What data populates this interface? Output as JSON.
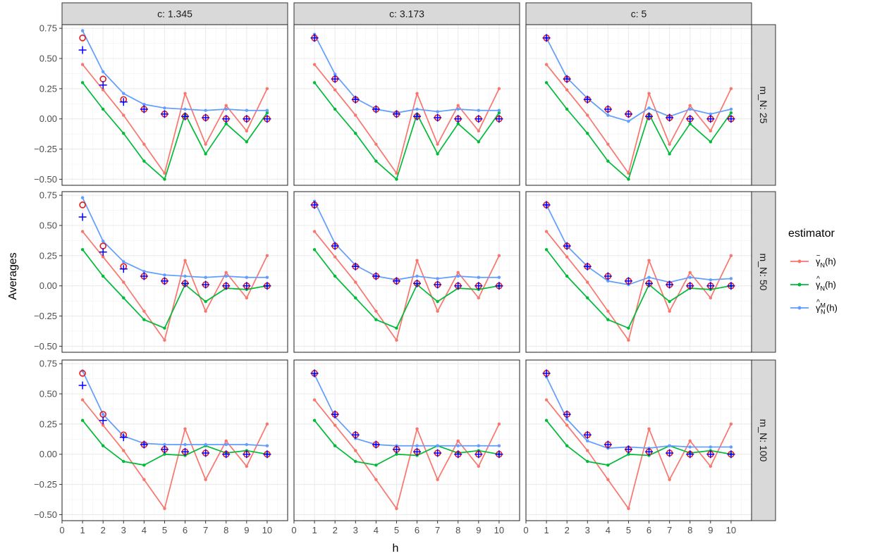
{
  "chart_data": {
    "type": "line",
    "xlabel": "h",
    "ylabel": "Averages",
    "xlim": [
      0,
      11
    ],
    "ylim": [
      -0.55,
      0.78
    ],
    "x_ticks": [
      0,
      1,
      2,
      3,
      4,
      5,
      6,
      7,
      8,
      9,
      10
    ],
    "y_ticks": [
      -0.5,
      -0.25,
      0,
      0.25,
      0.5,
      0.75
    ],
    "y_tick_labels": [
      "−0.50",
      "−0.25",
      "0.00",
      "0.25",
      "0.50",
      "0.75"
    ],
    "col_strips": [
      "c: 1.345",
      "c: 3.173",
      "c: 5"
    ],
    "row_strips": [
      "m_N: 25",
      "m_N: 50",
      "m_N: 100"
    ],
    "legend": {
      "title": "estimator",
      "entries": [
        {
          "base": "γ",
          "accent": "~",
          "sub": "N",
          "sup": "",
          "suffix": "(h)",
          "color": "#F8766D"
        },
        {
          "base": "γ",
          "accent": "^",
          "sub": "N",
          "sup": "",
          "suffix": "(h)",
          "color": "#00BA38"
        },
        {
          "base": "γ",
          "accent": "^",
          "sub": "N",
          "sup": "M",
          "suffix": "(h)",
          "color": "#619CFF"
        }
      ]
    },
    "colors": {
      "red": "#F8766D",
      "green": "#00BA38",
      "blue": "#619CFF",
      "circle": "#E41A1C",
      "plus": "#0000FF"
    },
    "x": [
      1,
      2,
      3,
      4,
      5,
      6,
      7,
      8,
      9,
      10
    ],
    "red_series": [
      0.45,
      0.24,
      0.03,
      -0.21,
      -0.45,
      0.21,
      -0.21,
      0.11,
      -0.1,
      0.25
    ],
    "panels": [
      {
        "row": 0,
        "col": 0,
        "green": [
          0.3,
          0.08,
          -0.12,
          -0.35,
          -0.5,
          0.04,
          -0.29,
          -0.04,
          -0.19,
          0.05
        ],
        "blue": [
          0.73,
          0.39,
          0.21,
          0.12,
          0.09,
          0.08,
          0.07,
          0.08,
          0.07,
          0.07
        ],
        "circles": [
          0.67,
          0.33,
          0.16,
          0.08,
          0.04,
          0.02,
          0.01,
          0.0,
          0.0,
          0.0
        ],
        "pluses": [
          0.57,
          0.28,
          0.14,
          0.08,
          0.04,
          0.02,
          0.01,
          0.0,
          0.0,
          0.0
        ]
      },
      {
        "row": 0,
        "col": 1,
        "green": [
          0.3,
          0.08,
          -0.12,
          -0.35,
          -0.5,
          0.04,
          -0.29,
          -0.04,
          -0.19,
          0.05
        ],
        "blue": [
          0.7,
          0.37,
          0.17,
          0.08,
          0.05,
          0.08,
          0.06,
          0.08,
          0.07,
          0.07
        ],
        "circles": [
          0.67,
          0.33,
          0.16,
          0.08,
          0.04,
          0.02,
          0.01,
          0.0,
          0.0,
          0.0
        ],
        "pluses": [
          0.67,
          0.33,
          0.16,
          0.08,
          0.04,
          0.02,
          0.01,
          0.0,
          0.0,
          0.0
        ]
      },
      {
        "row": 0,
        "col": 2,
        "green": [
          0.3,
          0.08,
          -0.12,
          -0.35,
          -0.5,
          0.04,
          -0.29,
          -0.04,
          -0.19,
          0.05
        ],
        "blue": [
          0.67,
          0.34,
          0.17,
          0.03,
          -0.02,
          0.09,
          0.02,
          0.08,
          0.04,
          0.08
        ],
        "circles": [
          0.67,
          0.33,
          0.16,
          0.08,
          0.04,
          0.02,
          0.01,
          0.0,
          0.0,
          0.0
        ],
        "pluses": [
          0.67,
          0.33,
          0.16,
          0.08,
          0.04,
          0.02,
          0.01,
          0.0,
          0.0,
          0.0
        ]
      },
      {
        "row": 1,
        "col": 0,
        "green": [
          0.3,
          0.08,
          -0.1,
          -0.28,
          -0.35,
          0.01,
          -0.13,
          -0.02,
          -0.03,
          0.0
        ],
        "blue": [
          0.73,
          0.37,
          0.2,
          0.12,
          0.09,
          0.08,
          0.07,
          0.08,
          0.07,
          0.07
        ],
        "circles": [
          0.67,
          0.33,
          0.16,
          0.08,
          0.04,
          0.02,
          0.01,
          0.0,
          0.0,
          0.0
        ],
        "pluses": [
          0.57,
          0.28,
          0.14,
          0.08,
          0.04,
          0.02,
          0.01,
          0.0,
          0.0,
          0.0
        ]
      },
      {
        "row": 1,
        "col": 1,
        "green": [
          0.3,
          0.08,
          -0.1,
          -0.28,
          -0.35,
          0.01,
          -0.13,
          -0.02,
          -0.03,
          0.0
        ],
        "blue": [
          0.7,
          0.35,
          0.17,
          0.08,
          0.05,
          0.08,
          0.06,
          0.08,
          0.07,
          0.07
        ],
        "circles": [
          0.67,
          0.33,
          0.16,
          0.08,
          0.04,
          0.02,
          0.01,
          0.0,
          0.0,
          0.0
        ],
        "pluses": [
          0.67,
          0.33,
          0.16,
          0.08,
          0.04,
          0.02,
          0.01,
          0.0,
          0.0,
          0.0
        ]
      },
      {
        "row": 1,
        "col": 2,
        "green": [
          0.3,
          0.08,
          -0.1,
          -0.28,
          -0.35,
          0.01,
          -0.13,
          -0.02,
          -0.03,
          0.0
        ],
        "blue": [
          0.67,
          0.33,
          0.16,
          0.04,
          0.01,
          0.07,
          0.03,
          0.07,
          0.05,
          0.06
        ],
        "circles": [
          0.67,
          0.33,
          0.16,
          0.08,
          0.04,
          0.02,
          0.01,
          0.0,
          0.0,
          0.0
        ],
        "pluses": [
          0.67,
          0.33,
          0.16,
          0.08,
          0.04,
          0.02,
          0.01,
          0.0,
          0.0,
          0.0
        ]
      },
      {
        "row": 2,
        "col": 0,
        "green": [
          0.28,
          0.07,
          -0.06,
          -0.09,
          0.0,
          -0.01,
          0.07,
          0.01,
          0.03,
          0.0
        ],
        "blue": [
          0.69,
          0.33,
          0.15,
          0.09,
          0.08,
          0.08,
          0.08,
          0.08,
          0.08,
          0.07
        ],
        "circles": [
          0.67,
          0.33,
          0.16,
          0.08,
          0.04,
          0.02,
          0.01,
          0.0,
          0.0,
          0.0
        ],
        "pluses": [
          0.57,
          0.28,
          0.14,
          0.08,
          0.04,
          0.02,
          0.01,
          0.0,
          0.0,
          0.0
        ]
      },
      {
        "row": 2,
        "col": 1,
        "green": [
          0.28,
          0.07,
          -0.06,
          -0.09,
          0.0,
          -0.01,
          0.07,
          0.01,
          0.03,
          0.0
        ],
        "blue": [
          0.66,
          0.31,
          0.13,
          0.08,
          0.07,
          0.07,
          0.07,
          0.07,
          0.07,
          0.07
        ],
        "circles": [
          0.67,
          0.33,
          0.16,
          0.08,
          0.04,
          0.02,
          0.01,
          0.0,
          0.0,
          0.0
        ],
        "pluses": [
          0.67,
          0.33,
          0.16,
          0.08,
          0.04,
          0.02,
          0.01,
          0.0,
          0.0,
          0.0
        ]
      },
      {
        "row": 2,
        "col": 2,
        "green": [
          0.28,
          0.07,
          -0.06,
          -0.09,
          0.0,
          -0.01,
          0.07,
          0.01,
          0.03,
          0.0
        ],
        "blue": [
          0.64,
          0.29,
          0.11,
          0.05,
          0.06,
          0.05,
          0.07,
          0.06,
          0.06,
          0.06
        ],
        "circles": [
          0.67,
          0.33,
          0.16,
          0.08,
          0.04,
          0.02,
          0.01,
          0.0,
          0.0,
          0.0
        ],
        "pluses": [
          0.67,
          0.33,
          0.16,
          0.08,
          0.04,
          0.02,
          0.01,
          0.0,
          0.0,
          0.0
        ]
      }
    ]
  }
}
